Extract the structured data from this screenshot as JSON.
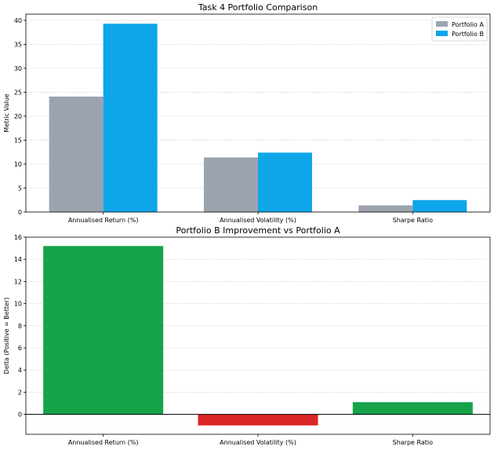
{
  "chart_data": [
    {
      "type": "bar",
      "title": "Task 4 Portfolio Comparison",
      "xlabel": "",
      "ylabel": "Metric Value",
      "categories": [
        "Annualised Return (%)",
        "Annualised Volatility (%)",
        "Sharpe Ratio"
      ],
      "series": [
        {
          "name": "Portfolio A",
          "color": "#9ca3af",
          "values": [
            24.1,
            11.4,
            1.4
          ]
        },
        {
          "name": "Portfolio B",
          "color": "#0ea5e9",
          "values": [
            39.3,
            12.4,
            2.5
          ]
        }
      ],
      "ylim": [
        0,
        41.3
      ],
      "yticks": [
        0,
        5,
        10,
        15,
        20,
        25,
        30,
        35,
        40
      ],
      "grid": "y",
      "legend": "top-right"
    },
    {
      "type": "bar",
      "title": "Portfolio B Improvement vs Portfolio A",
      "xlabel": "",
      "ylabel": "Delta (Positive = Better)",
      "categories": [
        "Annualised Return (%)",
        "Annualised Volatility (%)",
        "Sharpe Ratio"
      ],
      "values": [
        15.2,
        -1.0,
        1.1
      ],
      "colors": [
        "#16a34a",
        "#dc2626",
        "#16a34a"
      ],
      "ylim": [
        -1.8,
        16.0
      ],
      "yticks": [
        0,
        2,
        4,
        6,
        8,
        10,
        12,
        14,
        16
      ],
      "grid": "y",
      "zero_line": true
    }
  ]
}
